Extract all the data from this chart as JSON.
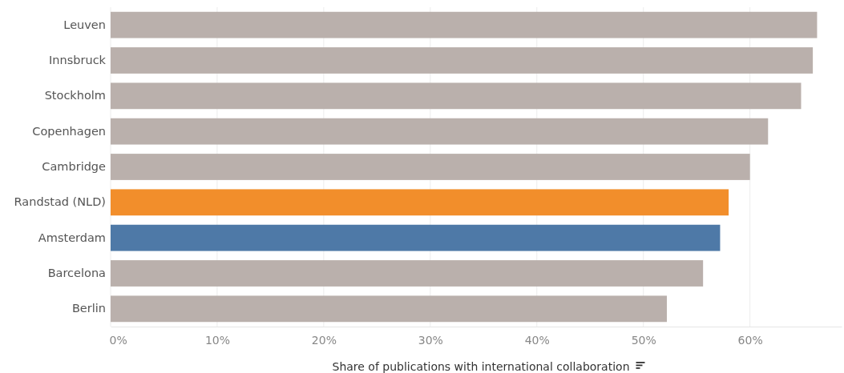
{
  "chart_data": {
    "type": "bar",
    "orientation": "horizontal",
    "xlabel": "Share of publications with international collaboration",
    "categories": [
      "Leuven",
      "Innsbruck",
      "Stockholm",
      "Copenhagen",
      "Cambridge",
      "Randstad (NLD)",
      "Amsterdam",
      "Barcelona",
      "Berlin"
    ],
    "values": [
      66.3,
      65.9,
      64.8,
      61.7,
      60.0,
      58.0,
      57.2,
      55.6,
      52.2
    ],
    "colors": [
      "#bab0ac",
      "#bab0ac",
      "#bab0ac",
      "#bab0ac",
      "#bab0ac",
      "#f28e2b",
      "#4e79a7",
      "#bab0ac",
      "#bab0ac"
    ],
    "xlim": [
      0,
      68.6
    ],
    "xticks": [
      {
        "value": 0,
        "label": "0%"
      },
      {
        "value": 10,
        "label": "10%"
      },
      {
        "value": 20,
        "label": "20%"
      },
      {
        "value": 30,
        "label": "30%"
      },
      {
        "value": 40,
        "label": "40%"
      },
      {
        "value": 50,
        "label": "50%"
      },
      {
        "value": 60,
        "label": "60%"
      }
    ],
    "grid": "x"
  }
}
